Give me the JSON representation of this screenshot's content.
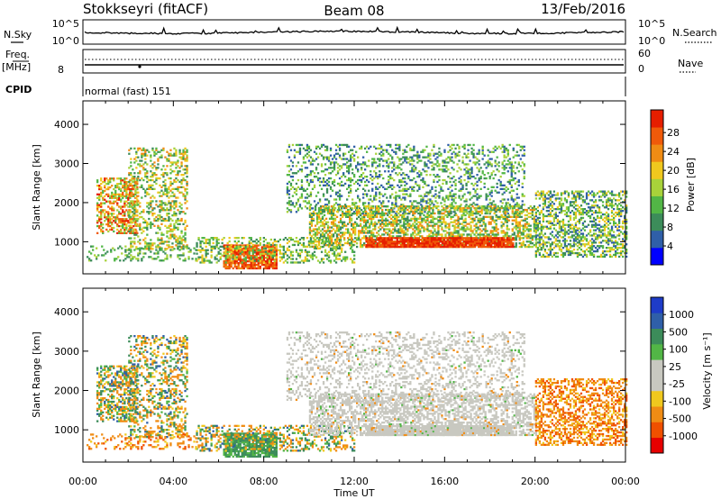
{
  "header": {
    "station": "Stokkseyri (fitACF)",
    "beam": "Beam 08",
    "date": "13/Feb/2016"
  },
  "strip_labels": {
    "nsky": "N.Sky",
    "nsearch": "N.Search",
    "freq": "Freq.",
    "mhz": "[MHz]",
    "nave": "Nave",
    "cpid": "CPID",
    "cpid_value": "normal (fast) 151",
    "nsky_top": "10^5",
    "nsky_bottom": "10^0",
    "freq_top": "",
    "freq_bottom": "8",
    "nave_top": "60",
    "nave_bottom": "0"
  },
  "colors": {
    "power": [
      "#0000ff",
      "#2f5fa8",
      "#3c8c5a",
      "#52b646",
      "#a8d23a",
      "#f0c81e",
      "#f08c14",
      "#f05a0a",
      "#e61e00"
    ],
    "velocity": [
      "#e60000",
      "#f05000",
      "#f08c14",
      "#f0c81e",
      "#c8c8c0",
      "#c8c8c0",
      "#52b646",
      "#3c8c5a",
      "#2f5fa8",
      "#1e3cc8"
    ]
  },
  "chart_data": [
    {
      "type": "heatmap",
      "name": "power",
      "xlabel": "Time UT",
      "ylabel": "Slant Range [km]",
      "colorbar_label": "Power [dB]",
      "x_ticks": [
        "00:00",
        "04:00",
        "08:00",
        "12:00",
        "16:00",
        "20:00",
        "00:00"
      ],
      "xlim_hours": [
        0,
        24
      ],
      "y_ticks": [
        1000,
        2000,
        3000,
        4000
      ],
      "ylim": [
        180,
        4600
      ],
      "colorbar_ticks": [
        "4",
        "8",
        "12",
        "16",
        "20",
        "24",
        "28"
      ],
      "colorbar_range": [
        0,
        33
      ]
    },
    {
      "type": "heatmap",
      "name": "velocity",
      "xlabel": "Time UT",
      "ylabel": "Slant Range [km]",
      "colorbar_label": "Velocity [m s⁻¹]",
      "x_ticks": [
        "00:00",
        "04:00",
        "08:00",
        "12:00",
        "16:00",
        "20:00",
        "00:00"
      ],
      "xlim_hours": [
        0,
        24
      ],
      "y_ticks": [
        1000,
        2000,
        3000,
        4000
      ],
      "ylim": [
        180,
        4600
      ],
      "colorbar_ticks": [
        "1000",
        "500",
        "100",
        "25",
        "-25",
        "-100",
        "-500",
        "-1000"
      ]
    }
  ]
}
